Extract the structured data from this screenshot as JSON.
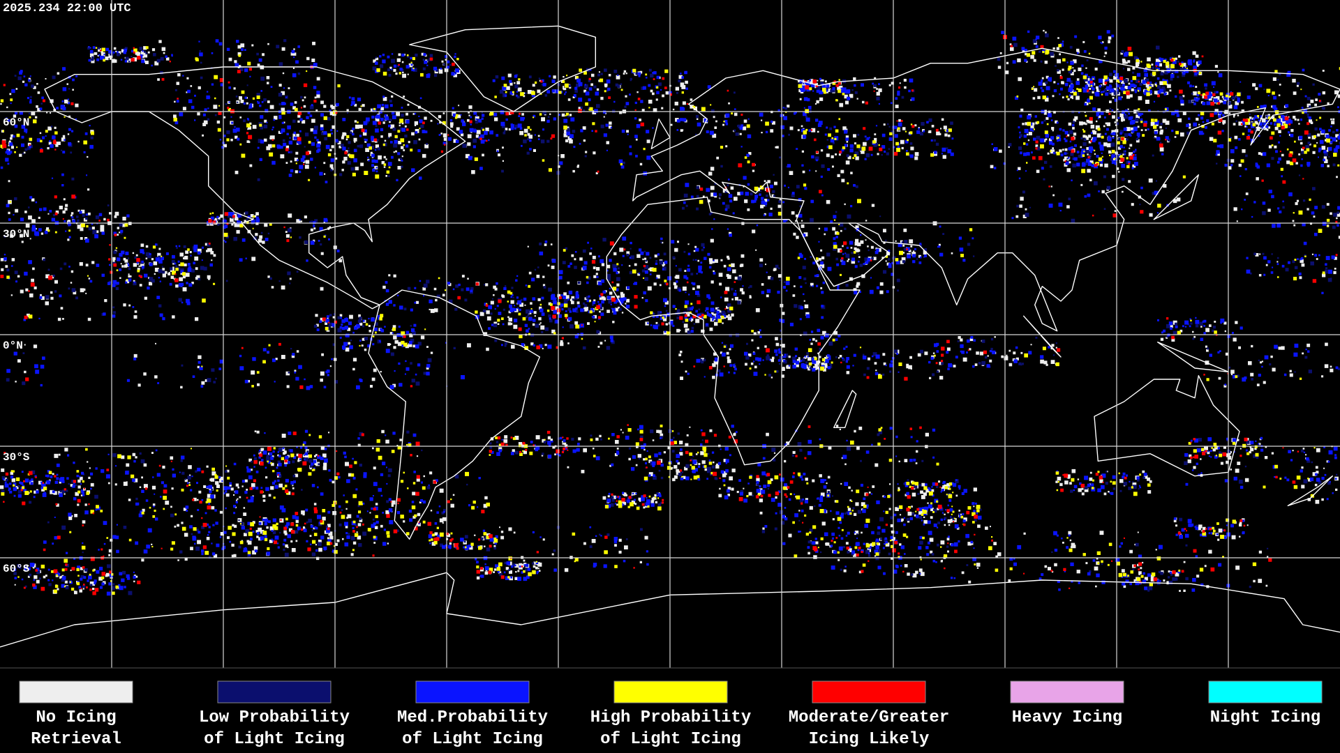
{
  "header": {
    "timestamp": "2025.234 22:00 UTC"
  },
  "map": {
    "latitude_labels": [
      "60°N",
      "30°N",
      "0°N",
      "30°S",
      "60°S"
    ]
  },
  "legend": {
    "items": [
      {
        "label": [
          "No Icing",
          "Retrieval"
        ],
        "color": "#eeeeee"
      },
      {
        "label": [
          "Low Probability",
          "of Light Icing"
        ],
        "color": "#0b0f6e"
      },
      {
        "label": [
          "Med.Probability",
          "of Light Icing"
        ],
        "color": "#0a14ff"
      },
      {
        "label": [
          "High Probability",
          "of Light Icing"
        ],
        "color": "#ffff00"
      },
      {
        "label": [
          "Moderate/Greater",
          "Icing Likely"
        ],
        "color": "#ff0000"
      },
      {
        "label": [
          "Heavy Icing"
        ],
        "color": "#e8a4e8"
      },
      {
        "label": [
          "Night Icing"
        ],
        "color": "#00ffff"
      }
    ]
  }
}
